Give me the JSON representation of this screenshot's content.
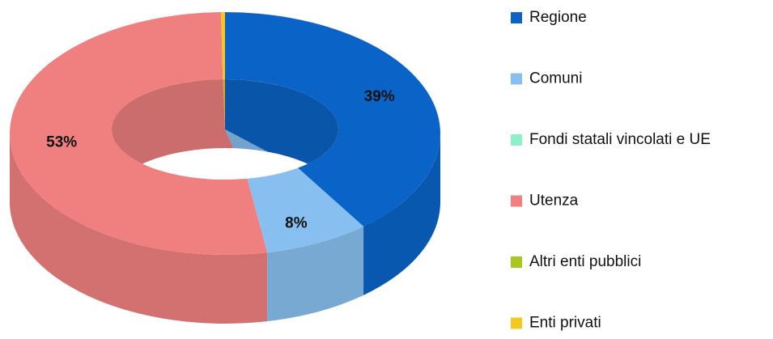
{
  "chart_data": {
    "type": "doughnut",
    "categories": [
      "Regione",
      "Comuni",
      "Fondi statali vincolati e UE",
      "Utenza",
      "Altri enti pubblici",
      "Enti privati"
    ],
    "values": [
      39,
      8,
      0,
      53,
      0,
      0.3
    ],
    "value_labels": [
      "39%",
      "8%",
      null,
      "53%",
      null,
      null
    ],
    "colors": [
      "#0a64c8",
      "#87c0f0",
      "#8ef0c8",
      "#f08080",
      "#a8c81e",
      "#f5c81e"
    ],
    "legend": "right"
  }
}
